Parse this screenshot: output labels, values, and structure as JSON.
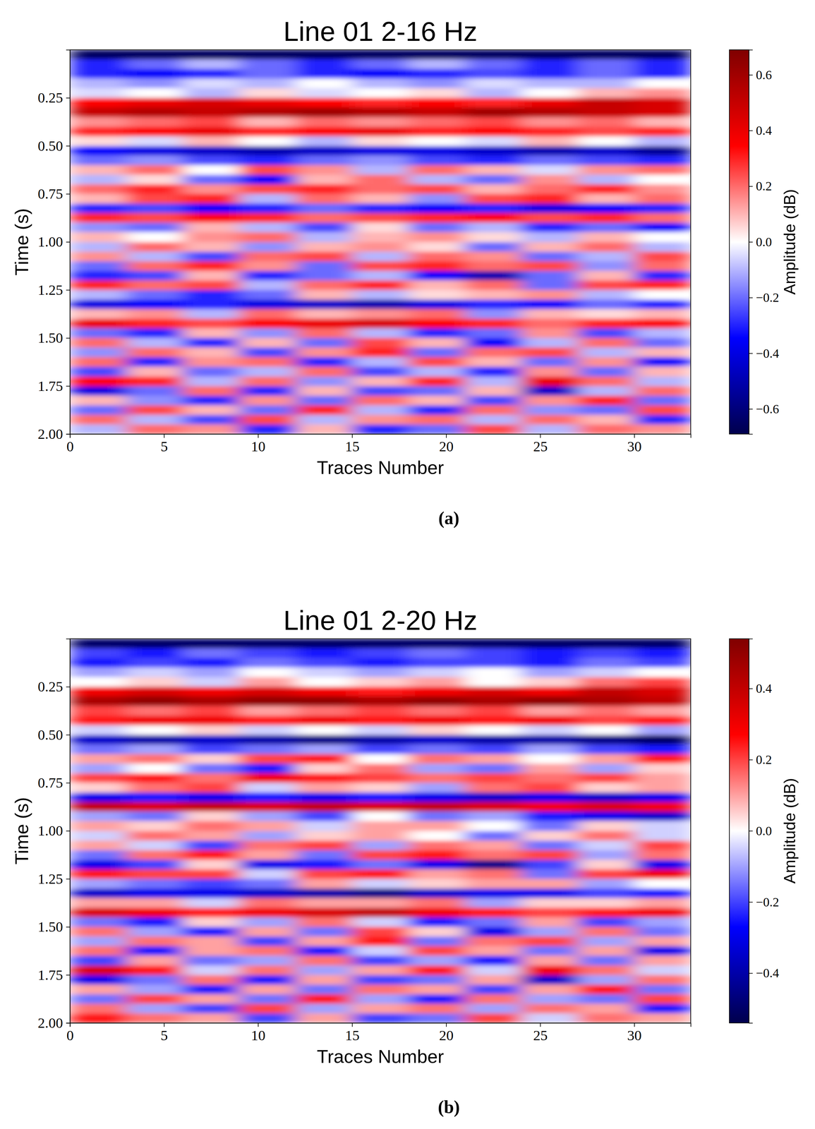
{
  "chart_data": [
    {
      "type": "heatmap",
      "title": "Line 01 2-16 Hz",
      "annotation": "(a)",
      "x_label": "Traces Number",
      "y_label": "Time (s)",
      "xlim": [
        0,
        33
      ],
      "ylim": [
        0,
        2
      ],
      "xticks": [
        0,
        5,
        10,
        15,
        20,
        25,
        30
      ],
      "yticks": [
        0.25,
        {
          "value": 0.5,
          "label": "0.50"
        },
        0.75,
        {
          "value": 1,
          "label": "1.00"
        },
        1.25,
        {
          "value": 1.5,
          "label": "1.50"
        },
        1.75,
        {
          "value": 2,
          "label": "2.00"
        }
      ],
      "grid": false,
      "x_edges": [
        0,
        3,
        6,
        9,
        12,
        15,
        18,
        21,
        24,
        27,
        30,
        33
      ],
      "y_edges": [
        0,
        0.05,
        0.1,
        0.15,
        0.2,
        0.25,
        0.3,
        0.35,
        0.4,
        0.45,
        0.5,
        0.55,
        0.6,
        0.65,
        0.7,
        0.75,
        0.8,
        0.85,
        0.9,
        0.95,
        1,
        1.05,
        1.1,
        1.15,
        1.2,
        1.25,
        1.3,
        1.35,
        1.4,
        1.45,
        1.5,
        1.55,
        1.6,
        1.65,
        1.7,
        1.75,
        1.8,
        1.85,
        1.9,
        1.95,
        2
      ],
      "z": [
        [
          -0.65,
          -0.65,
          -0.65,
          -0.65,
          -0.65,
          -0.65,
          -0.65,
          -0.65,
          -0.65,
          -0.65,
          -0.65
        ],
        [
          -0.3,
          -0.2,
          -0.1,
          -0.2,
          -0.3,
          -0.2,
          -0.1,
          -0.2,
          -0.3,
          -0.2,
          -0.3
        ],
        [
          -0.3,
          -0.35,
          -0.3,
          -0.2,
          -0.3,
          -0.35,
          -0.3,
          -0.25,
          -0.3,
          -0.2,
          -0.3
        ],
        [
          -0.1,
          -0.15,
          -0.05,
          -0.1,
          0.0,
          -0.1,
          -0.15,
          -0.05,
          -0.1,
          -0.1,
          0.0
        ],
        [
          -0.05,
          0.0,
          -0.1,
          0.05,
          -0.05,
          0.0,
          0.05,
          -0.1,
          0.0,
          0.1,
          0.15
        ],
        [
          0.35,
          0.4,
          0.45,
          0.4,
          0.35,
          0.3,
          0.35,
          0.3,
          0.4,
          0.5,
          0.45
        ],
        [
          0.5,
          0.55,
          0.5,
          0.55,
          0.6,
          0.55,
          0.5,
          0.6,
          0.55,
          0.5,
          0.45
        ],
        [
          0.15,
          0.2,
          0.25,
          0.1,
          0.2,
          0.15,
          0.2,
          0.25,
          0.15,
          0.2,
          0.1
        ],
        [
          0.3,
          0.35,
          0.4,
          0.3,
          0.35,
          0.4,
          0.3,
          0.35,
          0.3,
          0.25,
          0.3
        ],
        [
          0.05,
          -0.05,
          0.1,
          0.0,
          -0.1,
          0.05,
          0.0,
          -0.05,
          0.1,
          0.0,
          -0.1
        ],
        [
          -0.35,
          -0.4,
          -0.45,
          -0.5,
          -0.45,
          -0.4,
          -0.4,
          -0.45,
          -0.5,
          -0.45,
          -0.55
        ],
        [
          -0.2,
          -0.15,
          -0.25,
          -0.3,
          -0.2,
          -0.15,
          -0.25,
          -0.3,
          -0.2,
          -0.25,
          -0.3
        ],
        [
          0.1,
          0.2,
          0.0,
          0.25,
          0.15,
          -0.1,
          0.2,
          0.1,
          -0.05,
          0.15,
          0.2
        ],
        [
          -0.1,
          0.05,
          -0.2,
          -0.35,
          0.1,
          0.2,
          -0.1,
          -0.2,
          0.15,
          -0.1,
          0.0
        ],
        [
          0.2,
          0.3,
          0.15,
          0.25,
          0.3,
          0.2,
          0.25,
          0.1,
          0.2,
          0.3,
          0.15
        ],
        [
          0.1,
          0.25,
          0.3,
          -0.1,
          0.2,
          0.1,
          -0.15,
          0.25,
          0.3,
          0.1,
          0.2
        ],
        [
          -0.3,
          -0.25,
          -0.35,
          -0.3,
          -0.2,
          -0.3,
          -0.35,
          -0.3,
          -0.4,
          -0.35,
          -0.3
        ],
        [
          0.3,
          0.25,
          0.35,
          0.3,
          0.2,
          0.25,
          0.3,
          0.35,
          0.25,
          0.3,
          0.2
        ],
        [
          -0.15,
          -0.2,
          0.1,
          -0.1,
          -0.25,
          0.05,
          -0.2,
          -0.1,
          -0.3,
          -0.2,
          -0.35
        ],
        [
          0.1,
          0.0,
          0.15,
          0.2,
          -0.1,
          0.1,
          0.15,
          0.05,
          -0.1,
          0.1,
          0.0
        ],
        [
          -0.1,
          0.2,
          0.1,
          -0.15,
          0.1,
          0.15,
          0.05,
          -0.2,
          0.1,
          0.2,
          -0.1
        ],
        [
          0.15,
          -0.1,
          -0.25,
          0.2,
          0.25,
          -0.1,
          0.2,
          0.15,
          -0.2,
          -0.1,
          0.25
        ],
        [
          -0.2,
          0.2,
          0.3,
          0.15,
          -0.2,
          0.25,
          0.3,
          0.2,
          0.25,
          -0.15,
          0.2
        ],
        [
          -0.3,
          -0.25,
          0.1,
          -0.3,
          -0.2,
          -0.1,
          -0.35,
          -0.5,
          -0.2,
          0.1,
          -0.3
        ],
        [
          0.3,
          0.2,
          0.25,
          -0.1,
          0.2,
          0.3,
          0.1,
          0.2,
          -0.2,
          0.25,
          0.3
        ],
        [
          -0.1,
          -0.2,
          -0.3,
          -0.2,
          0.1,
          -0.1,
          0.05,
          0.1,
          0.15,
          -0.1,
          0.0
        ],
        [
          -0.4,
          -0.35,
          -0.3,
          -0.4,
          -0.45,
          -0.5,
          -0.4,
          -0.3,
          -0.35,
          -0.2,
          -0.3
        ],
        [
          0.1,
          0.15,
          -0.1,
          0.2,
          0.1,
          0.15,
          0.2,
          -0.15,
          0.1,
          0.05,
          0.1
        ],
        [
          0.4,
          0.3,
          0.25,
          0.35,
          0.4,
          0.45,
          0.35,
          0.3,
          0.2,
          0.3,
          0.35
        ],
        [
          -0.2,
          -0.3,
          0.1,
          -0.15,
          0.2,
          -0.1,
          -0.3,
          -0.2,
          0.15,
          -0.25,
          -0.1
        ],
        [
          0.2,
          -0.1,
          -0.3,
          0.1,
          -0.2,
          0.25,
          0.1,
          -0.35,
          -0.1,
          0.2,
          -0.2
        ],
        [
          -0.15,
          0.2,
          0.1,
          -0.25,
          0.15,
          0.3,
          -0.2,
          0.2,
          0.25,
          -0.1,
          0.1
        ],
        [
          0.2,
          -0.3,
          0.15,
          0.2,
          -0.3,
          -0.1,
          0.25,
          0.1,
          -0.2,
          0.15,
          -0.35
        ],
        [
          -0.25,
          0.1,
          -0.2,
          -0.1,
          0.2,
          -0.25,
          -0.1,
          -0.3,
          0.15,
          -0.2,
          0.1
        ],
        [
          0.35,
          0.3,
          -0.1,
          0.2,
          -0.15,
          0.1,
          0.3,
          -0.1,
          0.4,
          0.2,
          -0.1
        ],
        [
          -0.4,
          -0.2,
          0.2,
          -0.3,
          0.1,
          -0.25,
          -0.2,
          0.1,
          -0.45,
          -0.1,
          0.2
        ],
        [
          0.1,
          -0.15,
          -0.3,
          0.15,
          -0.2,
          0.2,
          0.1,
          -0.25,
          0.15,
          0.3,
          -0.2
        ],
        [
          -0.2,
          0.25,
          0.1,
          -0.2,
          0.3,
          -0.1,
          -0.3,
          0.2,
          -0.15,
          -0.2,
          0.25
        ],
        [
          0.2,
          -0.1,
          -0.25,
          0.25,
          -0.1,
          0.15,
          0.2,
          -0.1,
          0.2,
          0.1,
          -0.3
        ],
        [
          -0.1,
          0.2,
          0.15,
          -0.3,
          0.1,
          -0.3,
          -0.2,
          0.25,
          -0.1,
          0.2,
          0.15
        ]
      ],
      "colorbar": {
        "label": "Amplitude (dB)",
        "range": [
          -0.69,
          0.69
        ],
        "ticks": [
          {
            "value": -0.6,
            "label": "−0.6"
          },
          {
            "value": -0.4,
            "label": "−0.4"
          },
          {
            "value": -0.2,
            "label": "−0.2"
          },
          {
            "value": 0,
            "label": "0.0"
          },
          0.2,
          0.4,
          0.6
        ]
      }
    },
    {
      "type": "heatmap",
      "title": "Line 01 2-20 Hz",
      "annotation": "(b)",
      "x_label": "Traces Number",
      "y_label": "Time (s)",
      "xlim": [
        0,
        33
      ],
      "ylim": [
        0,
        2
      ],
      "xticks": [
        0,
        5,
        10,
        15,
        20,
        25,
        30
      ],
      "yticks": [
        0.25,
        {
          "value": 0.5,
          "label": "0.50"
        },
        0.75,
        {
          "value": 1,
          "label": "1.00"
        },
        1.25,
        {
          "value": 1.5,
          "label": "1.50"
        },
        1.75,
        {
          "value": 2,
          "label": "2.00"
        }
      ],
      "grid": false,
      "x_edges": [
        0,
        3,
        6,
        9,
        12,
        15,
        18,
        21,
        24,
        27,
        30,
        33
      ],
      "y_edges": [
        0,
        0.05,
        0.1,
        0.15,
        0.2,
        0.25,
        0.3,
        0.35,
        0.4,
        0.45,
        0.5,
        0.55,
        0.6,
        0.65,
        0.7,
        0.75,
        0.8,
        0.85,
        0.9,
        0.95,
        1,
        1.05,
        1.1,
        1.15,
        1.2,
        1.25,
        1.3,
        1.35,
        1.4,
        1.45,
        1.5,
        1.55,
        1.6,
        1.65,
        1.7,
        1.75,
        1.8,
        1.85,
        1.9,
        1.95,
        2
      ],
      "z": [
        [
          -0.5,
          -0.5,
          -0.5,
          -0.5,
          -0.5,
          -0.5,
          -0.5,
          -0.5,
          -0.5,
          -0.5,
          -0.5
        ],
        [
          -0.2,
          -0.25,
          -0.15,
          -0.2,
          -0.25,
          -0.2,
          -0.15,
          -0.2,
          -0.25,
          -0.2,
          -0.25
        ],
        [
          -0.25,
          -0.2,
          -0.25,
          -0.15,
          -0.2,
          -0.25,
          -0.2,
          -0.2,
          -0.25,
          -0.15,
          -0.2
        ],
        [
          -0.1,
          -0.05,
          -0.1,
          0.0,
          -0.05,
          -0.1,
          -0.05,
          0.0,
          -0.1,
          -0.05,
          0.0
        ],
        [
          0.0,
          0.05,
          -0.05,
          0.1,
          0.0,
          0.05,
          0.1,
          0.0,
          0.05,
          0.15,
          0.2
        ],
        [
          0.3,
          0.35,
          0.3,
          0.35,
          0.3,
          0.25,
          0.3,
          0.35,
          0.3,
          0.4,
          0.35
        ],
        [
          0.45,
          0.5,
          0.45,
          0.5,
          0.5,
          0.45,
          0.5,
          0.45,
          0.5,
          0.45,
          0.4
        ],
        [
          0.2,
          0.15,
          0.2,
          0.1,
          0.15,
          0.2,
          0.15,
          0.2,
          0.1,
          0.15,
          0.1
        ],
        [
          0.25,
          0.3,
          0.3,
          0.25,
          0.3,
          0.25,
          0.3,
          0.25,
          0.3,
          0.2,
          0.25
        ],
        [
          -0.05,
          0.0,
          0.05,
          -0.05,
          0.0,
          -0.05,
          0.05,
          0.0,
          -0.05,
          0.0,
          -0.1
        ],
        [
          -0.35,
          -0.4,
          -0.35,
          -0.4,
          -0.45,
          -0.4,
          -0.35,
          -0.4,
          -0.4,
          -0.45,
          -0.5
        ],
        [
          -0.15,
          -0.1,
          -0.2,
          -0.15,
          -0.1,
          -0.2,
          -0.15,
          -0.2,
          -0.1,
          -0.2,
          -0.25
        ],
        [
          0.1,
          0.15,
          0.05,
          0.2,
          0.25,
          0.0,
          0.15,
          0.1,
          0.0,
          0.1,
          0.25
        ],
        [
          -0.1,
          0.0,
          -0.15,
          -0.25,
          0.05,
          0.15,
          -0.1,
          -0.15,
          0.1,
          -0.1,
          0.05
        ],
        [
          0.2,
          0.25,
          0.15,
          0.3,
          0.25,
          0.2,
          0.15,
          0.2,
          0.15,
          0.2,
          0.1
        ],
        [
          0.05,
          0.15,
          0.2,
          -0.05,
          0.1,
          0.05,
          -0.1,
          0.15,
          0.2,
          0.05,
          0.1
        ],
        [
          -0.3,
          -0.25,
          -0.3,
          -0.25,
          -0.3,
          -0.25,
          -0.3,
          -0.35,
          -0.3,
          -0.35,
          -0.3
        ],
        [
          0.4,
          0.35,
          0.4,
          0.35,
          0.4,
          0.35,
          0.4,
          0.35,
          0.3,
          0.35,
          0.3
        ],
        [
          -0.1,
          -0.15,
          0.05,
          -0.1,
          -0.2,
          0.0,
          -0.15,
          -0.1,
          -0.25,
          -0.3,
          -0.35
        ],
        [
          0.1,
          0.05,
          0.15,
          0.1,
          -0.05,
          0.1,
          0.1,
          0.0,
          -0.15,
          0.05,
          -0.05
        ],
        [
          -0.05,
          0.15,
          0.1,
          -0.1,
          0.05,
          0.1,
          0.0,
          -0.15,
          0.05,
          0.15,
          -0.05
        ],
        [
          0.1,
          -0.05,
          -0.2,
          0.15,
          0.2,
          -0.1,
          0.15,
          0.1,
          -0.15,
          -0.05,
          0.2
        ],
        [
          -0.15,
          0.15,
          0.25,
          0.1,
          -0.15,
          0.2,
          0.25,
          0.15,
          0.2,
          -0.1,
          0.15
        ],
        [
          -0.3,
          -0.2,
          0.05,
          -0.3,
          -0.25,
          -0.15,
          -0.3,
          -0.45,
          -0.2,
          0.05,
          -0.3
        ],
        [
          0.25,
          0.2,
          0.2,
          -0.05,
          0.2,
          0.25,
          0.1,
          0.15,
          -0.15,
          0.2,
          0.3
        ],
        [
          -0.1,
          -0.15,
          -0.2,
          -0.15,
          0.1,
          -0.05,
          0.05,
          0.1,
          0.1,
          -0.1,
          0.0
        ],
        [
          -0.35,
          -0.3,
          -0.3,
          -0.35,
          -0.4,
          -0.45,
          -0.35,
          -0.3,
          -0.3,
          -0.2,
          -0.25
        ],
        [
          0.1,
          0.1,
          -0.05,
          0.15,
          0.1,
          0.1,
          0.15,
          -0.1,
          0.05,
          0.05,
          0.1
        ],
        [
          0.35,
          0.3,
          0.25,
          0.3,
          0.35,
          0.4,
          0.3,
          0.25,
          0.2,
          0.25,
          0.3
        ],
        [
          -0.15,
          -0.25,
          0.05,
          -0.1,
          0.15,
          -0.05,
          -0.25,
          -0.15,
          0.1,
          -0.2,
          -0.1
        ],
        [
          0.15,
          -0.1,
          -0.25,
          0.1,
          -0.15,
          0.2,
          0.05,
          -0.3,
          -0.1,
          0.15,
          -0.15
        ],
        [
          -0.1,
          0.15,
          0.1,
          -0.2,
          0.1,
          0.25,
          -0.15,
          0.15,
          0.2,
          -0.1,
          0.1
        ],
        [
          0.15,
          -0.25,
          0.1,
          0.15,
          -0.25,
          -0.05,
          0.2,
          0.1,
          -0.15,
          0.1,
          -0.3
        ],
        [
          -0.2,
          0.1,
          -0.15,
          -0.1,
          0.15,
          -0.2,
          -0.1,
          -0.25,
          0.1,
          -0.15,
          0.1
        ],
        [
          0.35,
          0.25,
          -0.05,
          0.15,
          -0.1,
          0.1,
          0.25,
          -0.05,
          0.3,
          0.15,
          -0.05
        ],
        [
          -0.3,
          -0.15,
          0.15,
          -0.25,
          0.1,
          -0.2,
          -0.15,
          0.1,
          -0.35,
          -0.1,
          0.15
        ],
        [
          0.1,
          -0.1,
          -0.25,
          0.1,
          -0.15,
          0.15,
          0.1,
          -0.2,
          0.1,
          0.25,
          -0.15
        ],
        [
          -0.15,
          0.2,
          0.1,
          -0.15,
          0.25,
          -0.1,
          -0.25,
          0.15,
          -0.1,
          -0.15,
          0.2
        ],
        [
          0.15,
          -0.1,
          -0.2,
          0.2,
          -0.1,
          0.1,
          0.15,
          -0.1,
          0.15,
          0.1,
          -0.25
        ],
        [
          0.25,
          0.15,
          0.1,
          -0.2,
          0.1,
          -0.2,
          -0.15,
          0.2,
          -0.05,
          0.15,
          0.1
        ]
      ],
      "colorbar": {
        "label": "Amplitude (dB)",
        "range": [
          -0.54,
          0.54
        ],
        "ticks": [
          {
            "value": -0.4,
            "label": "−0.4"
          },
          {
            "value": -0.2,
            "label": "−0.2"
          },
          {
            "value": 0,
            "label": "0.0"
          },
          0.2,
          0.4
        ]
      }
    }
  ]
}
